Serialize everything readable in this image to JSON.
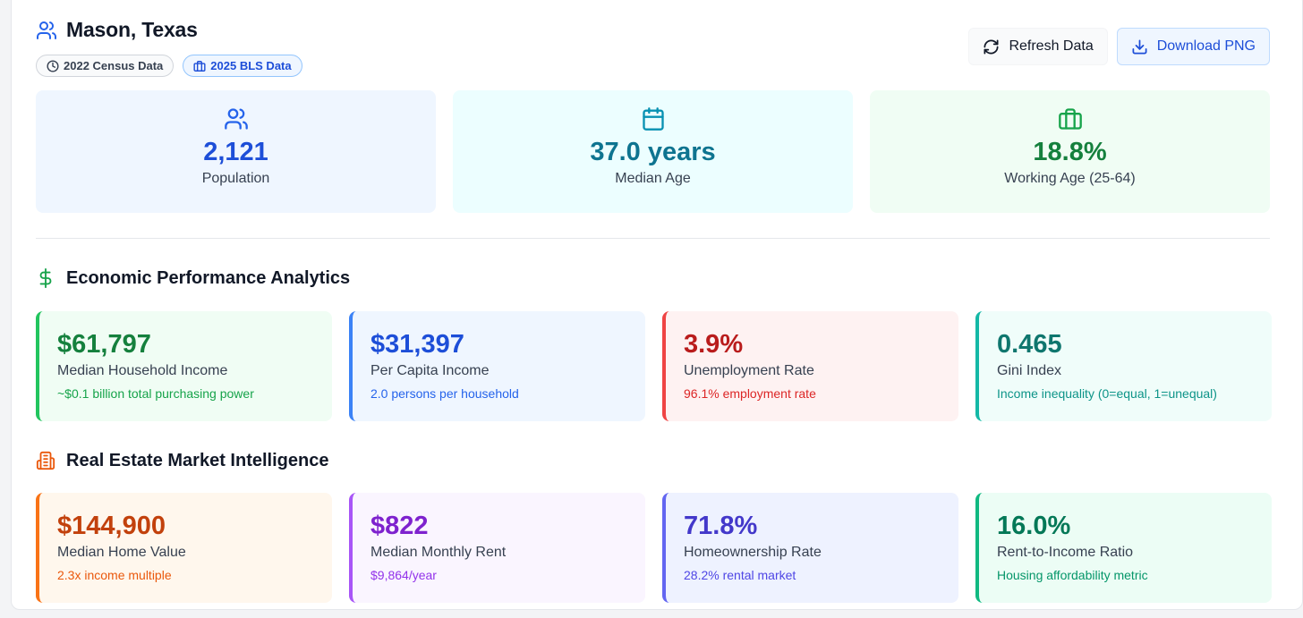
{
  "header": {
    "title": "Mason, Texas",
    "badges": [
      {
        "label": "2022 Census Data",
        "icon": "clock-icon"
      },
      {
        "label": "2025 BLS Data",
        "icon": "briefcase-icon"
      }
    ],
    "refresh_label": "Refresh Data",
    "download_label": "Download PNG"
  },
  "stats": [
    {
      "value": "2,121",
      "label": "Population",
      "icon": "users-icon",
      "bg": "#eff6ff",
      "color": "#1d4ed8",
      "icon_color": "#2563eb"
    },
    {
      "value": "37.0 years",
      "label": "Median Age",
      "icon": "calendar-icon",
      "bg": "#ecfeff",
      "color": "#0e7490",
      "icon_color": "#0891b2"
    },
    {
      "value": "18.8%",
      "label": "Working Age (25-64)",
      "icon": "briefcase-icon",
      "bg": "#f0fdf4",
      "color": "#15803d",
      "icon_color": "#16a34a"
    }
  ],
  "economic": {
    "title": "Economic Performance Analytics",
    "icon": "dollar-icon",
    "cards": [
      {
        "value": "$61,797",
        "label": "Median Household Income",
        "sub": "~$0.1 billion total purchasing power",
        "bg": "#f0fdf4",
        "color": "#15803d",
        "sub_color": "#16a34a",
        "border": "#22c55e"
      },
      {
        "value": "$31,397",
        "label": "Per Capita Income",
        "sub": "2.0 persons per household",
        "bg": "#eff6ff",
        "color": "#1d4ed8",
        "sub_color": "#2563eb",
        "border": "#3b82f6"
      },
      {
        "value": "3.9%",
        "label": "Unemployment Rate",
        "sub": "96.1% employment rate",
        "bg": "#fef2f2",
        "color": "#b91c1c",
        "sub_color": "#dc2626",
        "border": "#ef4444"
      },
      {
        "value": "0.465",
        "label": "Gini Index",
        "sub": "Income inequality (0=equal, 1=unequal)",
        "bg": "#f0fdfa",
        "color": "#0f766e",
        "sub_color": "#0d9488",
        "border": "#14b8a6"
      }
    ]
  },
  "real_estate": {
    "title": "Real Estate Market Intelligence",
    "icon": "building-icon",
    "cards": [
      {
        "value": "$144,900",
        "label": "Median Home Value",
        "sub": "2.3x income multiple",
        "bg": "#fff7ed",
        "color": "#c2410c",
        "sub_color": "#ea580c",
        "border": "#f97316"
      },
      {
        "value": "$822",
        "label": "Median Monthly Rent",
        "sub": "$9,864/year",
        "bg": "#faf5ff",
        "color": "#7e22ce",
        "sub_color": "#9333ea",
        "border": "#a855f7"
      },
      {
        "value": "71.8%",
        "label": "Homeownership Rate",
        "sub": "28.2% rental market",
        "bg": "#eef2ff",
        "color": "#4338ca",
        "sub_color": "#4f46e5",
        "border": "#6366f1"
      },
      {
        "value": "16.0%",
        "label": "Rent-to-Income Ratio",
        "sub": "Housing affordability metric",
        "bg": "#ecfdf5",
        "color": "#047857",
        "sub_color": "#059669",
        "border": "#10b981"
      }
    ]
  }
}
